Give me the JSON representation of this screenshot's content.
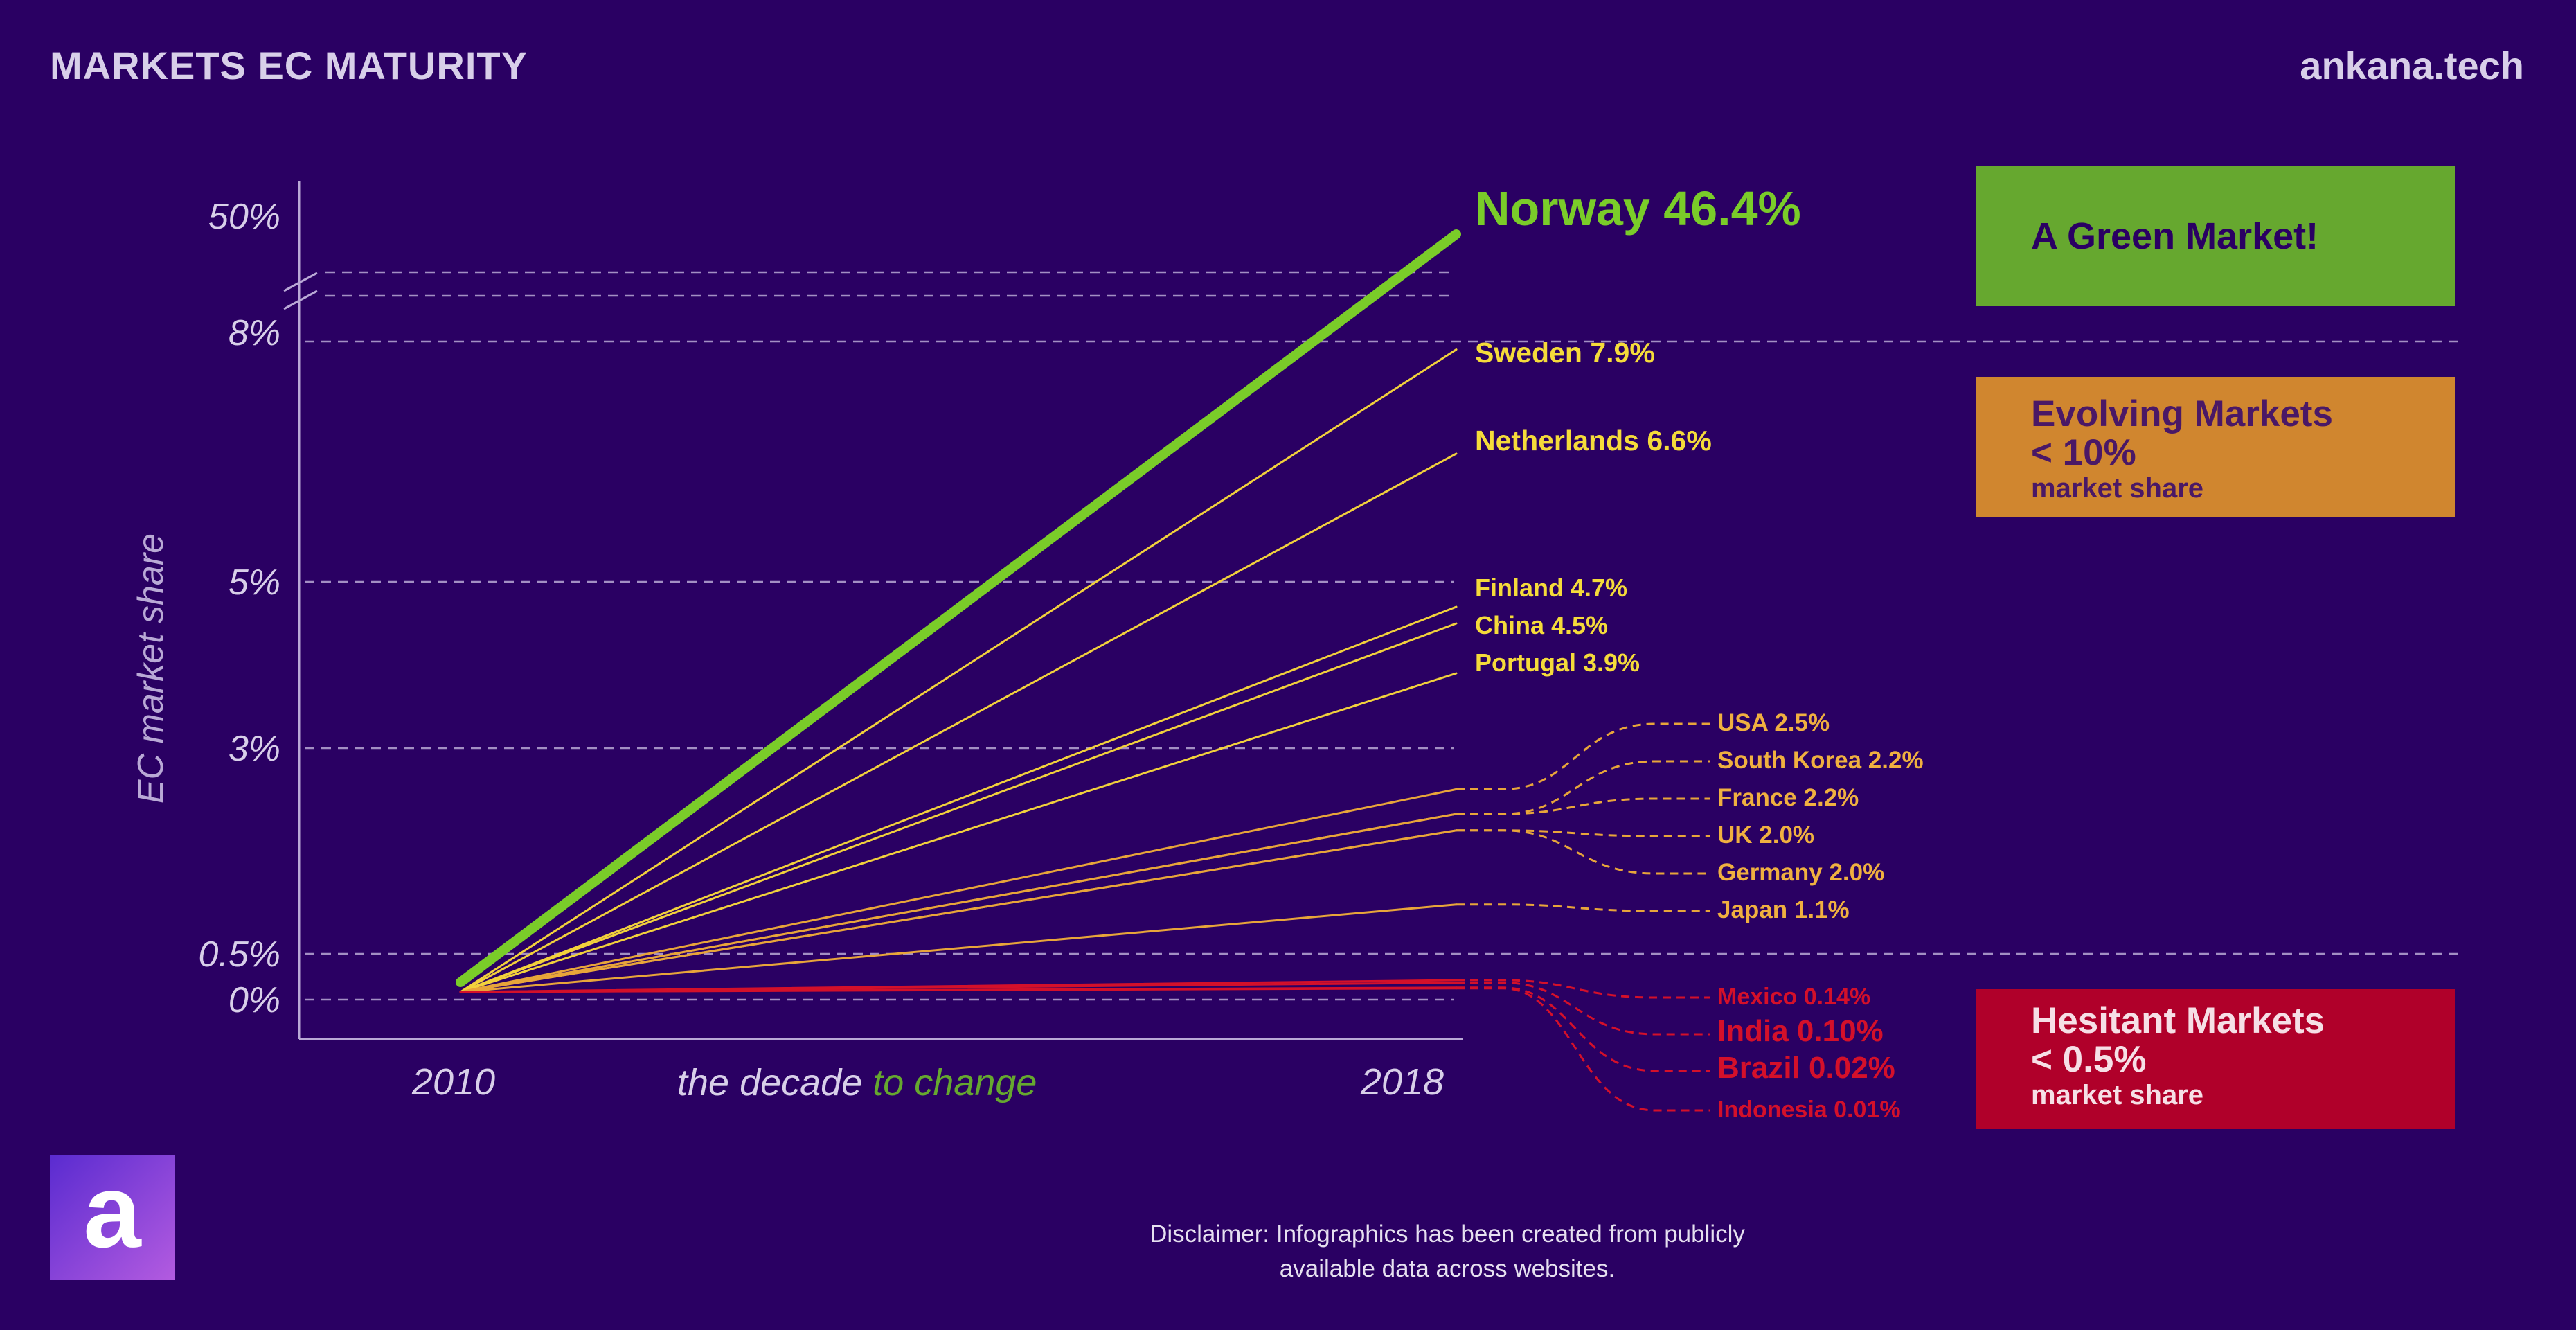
{
  "header": {
    "title": "MARKETS EC MATURITY",
    "site": "ankana.tech"
  },
  "colors": {
    "background": "#2a0063",
    "green": "#7acc29",
    "evolving_line": "#f2d13c",
    "evolving_label": "#f5db3a",
    "developing_line": "#e8a53a",
    "developing_label": "#f0b040",
    "hesitant": "#d4102a",
    "gridline": "#b9a9d6",
    "axis_text": "#d8cfe9"
  },
  "legend": {
    "green": {
      "title": "A Green Market!"
    },
    "evolving": {
      "title_line1": "Evolving Markets",
      "title_line2": "< 10%",
      "sub": "market share"
    },
    "hesitant": {
      "title_line1": "Hesitant Markets",
      "title_line2": "< 0.5%",
      "sub": "market share"
    }
  },
  "logo": {
    "letter": "a"
  },
  "disclaimer": {
    "line1": "Disclaimer: Infographics has been created from publicly",
    "line2": "available data across websites."
  },
  "caption": {
    "prefix": "the decade ",
    "accent": "to change"
  },
  "chart_data": {
    "type": "line",
    "ylabel": "EC market share",
    "x": [
      "2010",
      "2018"
    ],
    "y_ticks": [
      "0%",
      "0.5%",
      "3%",
      "5%",
      "8%",
      "50%"
    ],
    "y_scale": "broken (non-linear) axis with a break between 8% and 50%",
    "grid": "dashed horizontal lines at tick values",
    "series": [
      {
        "name": "Norway",
        "label": "Norway 46.4%",
        "end": 46.4,
        "group": "green"
      },
      {
        "name": "Sweden",
        "label": "Sweden 7.9%",
        "end": 7.9,
        "group": "evolving"
      },
      {
        "name": "Netherlands",
        "label": "Netherlands 6.6%",
        "end": 6.6,
        "group": "evolving"
      },
      {
        "name": "Finland",
        "label": "Finland 4.7%",
        "end": 4.7,
        "group": "evolving"
      },
      {
        "name": "China",
        "label": "China 4.5%",
        "end": 4.5,
        "group": "evolving"
      },
      {
        "name": "Portugal",
        "label": "Portugal 3.9%",
        "end": 3.9,
        "group": "evolving"
      },
      {
        "name": "USA",
        "label": "USA 2.5%",
        "end": 2.5,
        "group": "developing"
      },
      {
        "name": "South Korea",
        "label": "South Korea 2.2%",
        "end": 2.2,
        "group": "developing"
      },
      {
        "name": "France",
        "label": "France 2.2%",
        "end": 2.2,
        "group": "developing"
      },
      {
        "name": "UK",
        "label": "UK 2.0%",
        "end": 2.0,
        "group": "developing"
      },
      {
        "name": "Germany",
        "label": "Germany 2.0%",
        "end": 2.0,
        "group": "developing"
      },
      {
        "name": "Japan",
        "label": "Japan 1.1%",
        "end": 1.1,
        "group": "developing"
      },
      {
        "name": "Mexico",
        "label": "Mexico 0.14%",
        "end": 0.14,
        "group": "hesitant"
      },
      {
        "name": "India",
        "label": "India 0.10%",
        "end": 0.1,
        "group": "hesitant"
      },
      {
        "name": "Brazil",
        "label": "Brazil 0.02%",
        "end": 0.02,
        "group": "hesitant"
      },
      {
        "name": "Indonesia",
        "label": "Indonesia 0.01%",
        "end": 0.01,
        "group": "hesitant"
      }
    ]
  }
}
